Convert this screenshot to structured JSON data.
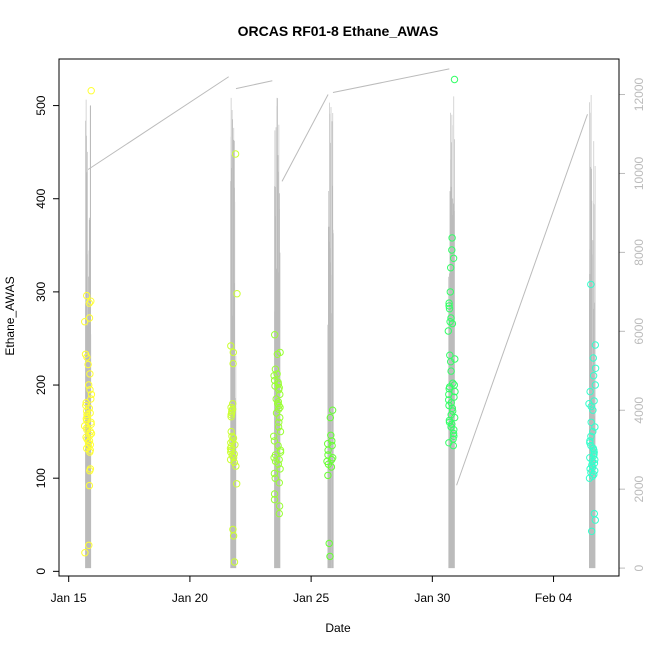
{
  "chart_data": {
    "type": "scatter",
    "title": "ORCAS RF01-8 Ethane_AWAS",
    "xlabel": "Date",
    "ylabel": "Ethane_AWAS",
    "x_ticks": [
      {
        "day": 15,
        "label": "Jan 15"
      },
      {
        "day": 20,
        "label": "Jan 20"
      },
      {
        "day": 25,
        "label": "Jan 25"
      },
      {
        "day": 30,
        "label": "Jan 30"
      },
      {
        "day": 35,
        "label": "Feb 04"
      }
    ],
    "xlim": [
      14.6,
      37.7
    ],
    "ylim": [
      -5,
      550
    ],
    "y_ticks": [
      0,
      100,
      200,
      300,
      400,
      500
    ],
    "y2lim": [
      -200,
      12900
    ],
    "y2_ticks": [
      0,
      2000,
      4000,
      6000,
      8000,
      10000,
      12000
    ],
    "y2_color": "#bbbbbb",
    "grid": false,
    "flights": [
      {
        "day": 15.8,
        "color": "#ffff33",
        "values": [
          516,
          296,
          290,
          288,
          272,
          268,
          233,
          230,
          222,
          212,
          200,
          195,
          190,
          185,
          181,
          178,
          175,
          172,
          170,
          168,
          166,
          164,
          162,
          160,
          158,
          156,
          154,
          152,
          150,
          148,
          146,
          144,
          142,
          140,
          138,
          136,
          134,
          132,
          130,
          128,
          110,
          108,
          92,
          28,
          20
        ]
      },
      {
        "day": 21.8,
        "color": "#ccff33",
        "values": [
          448,
          298,
          242,
          235,
          223,
          180,
          176,
          174,
          172,
          170,
          168,
          166,
          150,
          145,
          143,
          140,
          138,
          136,
          134,
          132,
          130,
          128,
          126,
          124,
          122,
          120,
          117,
          113,
          94,
          45,
          38,
          10
        ]
      },
      {
        "day": 23.6,
        "color": "#99ff33",
        "values": [
          254,
          235,
          233,
          217,
          212,
          210,
          205,
          203,
          201,
          199,
          197,
          195,
          190,
          185,
          182,
          180,
          178,
          176,
          174,
          170,
          165,
          160,
          155,
          150,
          145,
          140,
          135,
          130,
          128,
          125,
          122,
          120,
          118,
          115,
          110,
          105,
          100,
          95,
          83,
          77,
          70,
          62
        ]
      },
      {
        "day": 25.8,
        "color": "#66ff33",
        "values": [
          173,
          165,
          146,
          140,
          137,
          135,
          130,
          125,
          122,
          120,
          118,
          115,
          112,
          103,
          30,
          16
        ]
      },
      {
        "day": 30.8,
        "color": "#33ff66",
        "values": [
          528,
          358,
          345,
          336,
          326,
          300,
          288,
          285,
          282,
          272,
          268,
          266,
          258,
          232,
          228,
          225,
          215,
          202,
          200,
          198,
          196,
          193,
          190,
          187,
          184,
          181,
          178,
          175,
          172,
          168,
          165,
          162,
          160,
          158,
          155,
          152,
          148,
          145,
          142,
          138,
          135
        ]
      },
      {
        "day": 36.6,
        "color": "#33ffcc",
        "values": [
          308,
          243,
          229,
          218,
          210,
          200,
          193,
          183,
          180,
          177,
          173,
          160,
          155,
          150,
          145,
          140,
          138,
          135,
          132,
          130,
          128,
          126,
          124,
          122,
          120,
          118,
          116,
          114,
          112,
          110,
          108,
          106,
          104,
          102,
          100,
          62,
          55,
          43
        ]
      }
    ],
    "altitude_series": {
      "color": "#bbbbbb",
      "connectors": [
        {
          "from": [
            15.8,
            10100
          ],
          "to": [
            21.6,
            12450
          ]
        },
        {
          "from": [
            21.9,
            12150
          ],
          "to": [
            23.4,
            12350
          ]
        },
        {
          "from": [
            23.8,
            9800
          ],
          "to": [
            25.7,
            12000
          ]
        },
        {
          "from": [
            25.9,
            12050
          ],
          "to": [
            30.7,
            12650
          ]
        },
        {
          "from": [
            31.0,
            2100
          ],
          "to": [
            36.4,
            11500
          ]
        }
      ]
    }
  }
}
